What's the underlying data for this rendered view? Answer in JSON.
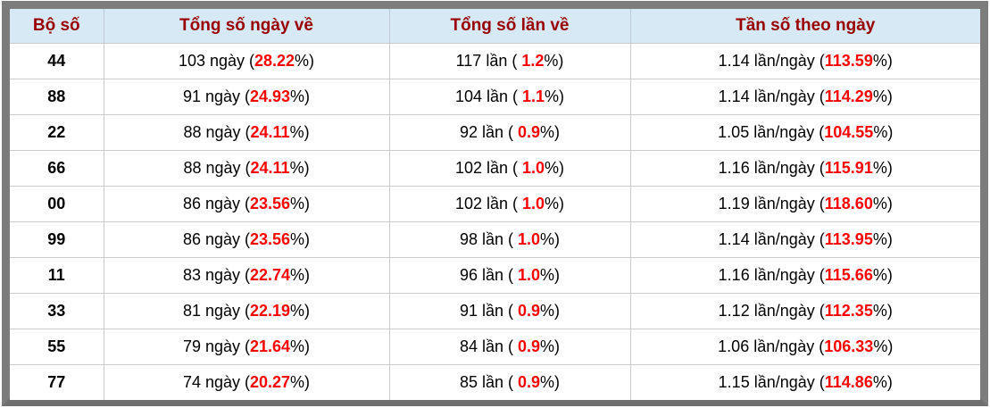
{
  "colors": {
    "header_bg": "#d6e9f5",
    "header_text": "#990000",
    "highlight_red": "#ff0000",
    "frame_border": "#7c7c7c",
    "grid_line": "#cccccc"
  },
  "table": {
    "headers": [
      "Bộ số",
      "Tổng số ngày về",
      "Tổng số lần về",
      "Tần số theo ngày"
    ],
    "rows": [
      {
        "pair": "44",
        "days_text": "103 ngày (",
        "days_pct": "28.22",
        "days_close": "%)",
        "times_text": "117 lần ( ",
        "times_pct": "1.2",
        "times_close": "%)",
        "freq_text": "1.14 lần/ngày (",
        "freq_pct": "113.59",
        "freq_close": "%)"
      },
      {
        "pair": "88",
        "days_text": "91 ngày (",
        "days_pct": "24.93",
        "days_close": "%)",
        "times_text": "104 lần ( ",
        "times_pct": "1.1",
        "times_close": "%)",
        "freq_text": "1.14 lần/ngày (",
        "freq_pct": "114.29",
        "freq_close": "%)"
      },
      {
        "pair": "22",
        "days_text": "88 ngày (",
        "days_pct": "24.11",
        "days_close": "%)",
        "times_text": "92 lần ( ",
        "times_pct": "0.9",
        "times_close": "%)",
        "freq_text": "1.05 lần/ngày (",
        "freq_pct": "104.55",
        "freq_close": "%)"
      },
      {
        "pair": "66",
        "days_text": "88 ngày (",
        "days_pct": "24.11",
        "days_close": "%)",
        "times_text": "102 lần ( ",
        "times_pct": "1.0",
        "times_close": "%)",
        "freq_text": "1.16 lần/ngày (",
        "freq_pct": "115.91",
        "freq_close": "%)"
      },
      {
        "pair": "00",
        "days_text": "86 ngày (",
        "days_pct": "23.56",
        "days_close": "%)",
        "times_text": "102 lần ( ",
        "times_pct": "1.0",
        "times_close": "%)",
        "freq_text": "1.19 lần/ngày (",
        "freq_pct": "118.60",
        "freq_close": "%)"
      },
      {
        "pair": "99",
        "days_text": "86 ngày (",
        "days_pct": "23.56",
        "days_close": "%)",
        "times_text": "98 lần ( ",
        "times_pct": "1.0",
        "times_close": "%)",
        "freq_text": "1.14 lần/ngày (",
        "freq_pct": "113.95",
        "freq_close": "%)"
      },
      {
        "pair": "11",
        "days_text": "83 ngày (",
        "days_pct": "22.74",
        "days_close": "%)",
        "times_text": "96 lần ( ",
        "times_pct": "1.0",
        "times_close": "%)",
        "freq_text": "1.16 lần/ngày (",
        "freq_pct": "115.66",
        "freq_close": "%)"
      },
      {
        "pair": "33",
        "days_text": "81 ngày (",
        "days_pct": "22.19",
        "days_close": "%)",
        "times_text": "91 lần ( ",
        "times_pct": "0.9",
        "times_close": "%)",
        "freq_text": "1.12 lần/ngày (",
        "freq_pct": "112.35",
        "freq_close": "%)"
      },
      {
        "pair": "55",
        "days_text": "79 ngày (",
        "days_pct": "21.64",
        "days_close": "%)",
        "times_text": "84 lần ( ",
        "times_pct": "0.9",
        "times_close": "%)",
        "freq_text": "1.06 lần/ngày (",
        "freq_pct": "106.33",
        "freq_close": "%)"
      },
      {
        "pair": "77",
        "days_text": "74 ngày (",
        "days_pct": "20.27",
        "days_close": "%)",
        "times_text": "85 lần ( ",
        "times_pct": "0.9",
        "times_close": "%)",
        "freq_text": "1.15 lần/ngày (",
        "freq_pct": "114.86",
        "freq_close": "%)"
      }
    ]
  }
}
